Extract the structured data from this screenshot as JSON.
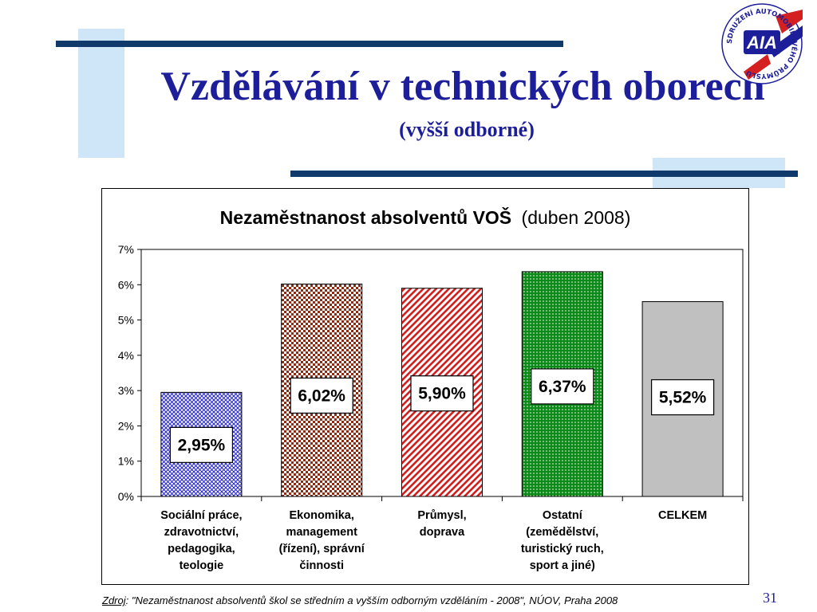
{
  "slide": {
    "title": "Vzdělávání v technických oborech",
    "subtitle": "(vyšší odborné)",
    "page_number": "31",
    "logo_text": "AIA",
    "logo_ring_text": "SDRUŽENÍ AUTOMOBILOVÉHO PRŮMYSLU",
    "source_label": "Zdroj",
    "source_text": ": \"Nezaměstnanost absolventů škol se středním a vyšším odborným vzděláním - 2008\", NÚOV, Praha 2008",
    "colors": {
      "title": "#1d1e9a",
      "dark_bar": "#0f3a6b",
      "light_block": "#cfe6f8"
    }
  },
  "chart_data": {
    "type": "bar",
    "title_bold": "Nezaměstnanost absolventů VOŠ",
    "title_normal": "(duben 2008)",
    "ylim": [
      0,
      7
    ],
    "yticks": [
      "0%",
      "1%",
      "2%",
      "3%",
      "4%",
      "5%",
      "6%",
      "7%"
    ],
    "categories": [
      [
        "Sociální práce,",
        "zdravotnictví,",
        "pedagogika,",
        "teologie"
      ],
      [
        "Ekonomika,",
        "management",
        "(řízení), správní",
        "činnosti"
      ],
      [
        "Průmysl,",
        "doprava"
      ],
      [
        "Ostatní",
        "(zemědělství,",
        "turistický ruch,",
        "sport a jiné)"
      ],
      [
        "CELKEM"
      ]
    ],
    "values": [
      2.95,
      6.02,
      5.9,
      6.37,
      5.52
    ],
    "value_labels": [
      "2,95%",
      "6,02%",
      "5,90%",
      "6,37%",
      "5,52%"
    ],
    "bar_colors": [
      "#2b2bd0",
      "#8b2a10",
      "#d61e1e",
      "#0c8a18",
      "#c0c0c0"
    ],
    "bar_patterns": [
      "crosshatch",
      "checker",
      "diagonal",
      "dots",
      "solid"
    ],
    "grid": false
  }
}
